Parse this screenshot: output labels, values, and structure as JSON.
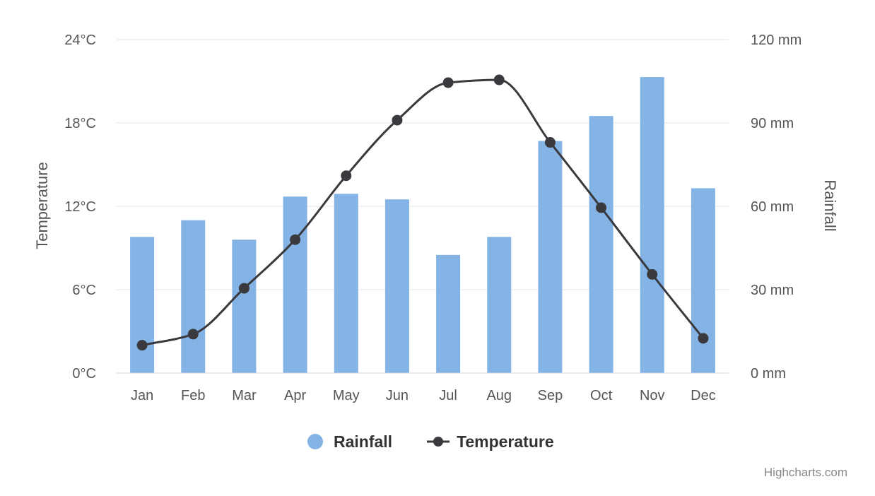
{
  "chart_data": {
    "type": "bar",
    "categories": [
      "Jan",
      "Feb",
      "Mar",
      "Apr",
      "May",
      "Jun",
      "Jul",
      "Aug",
      "Sep",
      "Oct",
      "Nov",
      "Dec"
    ],
    "series": [
      {
        "name": "Rainfall",
        "type": "bar",
        "axis": "right",
        "color": "#84b3e6",
        "values": [
          49,
          55,
          48,
          63.5,
          64.5,
          62.5,
          42.5,
          49,
          83.5,
          92.5,
          106.5,
          66.5
        ]
      },
      {
        "name": "Temperature",
        "type": "line",
        "axis": "left",
        "color": "#3a3a3e",
        "values": [
          2.0,
          2.8,
          6.1,
          9.6,
          14.2,
          18.2,
          20.9,
          21.1,
          16.6,
          11.9,
          7.1,
          2.5
        ]
      }
    ],
    "yaxis_left": {
      "title": "Temperature",
      "range": [
        0,
        24
      ],
      "ticks": [
        "0°C",
        "6°C",
        "12°C",
        "18°C",
        "24°C"
      ]
    },
    "yaxis_right": {
      "title": "Rainfall",
      "range": [
        0,
        120
      ],
      "ticks": [
        "0 mm",
        "30 mm",
        "60 mm",
        "90 mm",
        "120 mm"
      ]
    },
    "grid": true,
    "legend_placement": "bottom-center"
  },
  "credits": "Highcharts.com"
}
